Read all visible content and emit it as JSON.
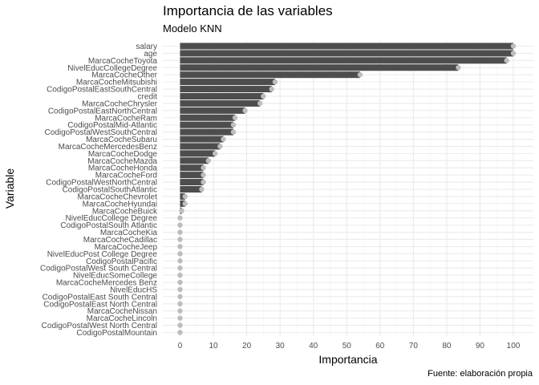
{
  "chart_data": {
    "type": "bar",
    "title": "Importancia de las variables",
    "subtitle": "Modelo KNN",
    "caption": "Fuente: elaboración propia",
    "xlabel": "Importancia",
    "ylabel": "Variable",
    "xlim": [
      0,
      100
    ],
    "xticks": [
      "0",
      "10",
      "20",
      "30",
      "40",
      "50",
      "60",
      "70",
      "80",
      "90",
      "100"
    ],
    "orientation": "horizontal",
    "grid": true,
    "bar_color": "#4d4d4d",
    "point_color": "#bdbdbd",
    "categories": [
      "salary",
      "age",
      "MarcaCocheToyota",
      "NivelEducCollegeDegree",
      "MarcaCocheOther",
      "MarcaCocheMitsubishi",
      "CodigoPostalEastSouthCentral",
      "credit",
      "MarcaCocheChrysler",
      "CodigoPostalEastNorthCentral",
      "MarcaCocheRam",
      "CodigoPostalMid-Atlantic",
      "CodigoPostalWestSouthCentral",
      "MarcaCocheSubaru",
      "MarcaCocheMercedesBenz",
      "MarcaCocheDodge",
      "MarcaCocheMazda",
      "MarcaCocheHonda",
      "MarcaCocheFord",
      "CodigoPostalWestNorthCentral",
      "CodigoPostalSouthAtlantic",
      "MarcaCocheChevrolet",
      "MarcaCocheHyundai",
      "MarcaCocheBuick",
      "NivelEducCollege Degree",
      "CodigoPostalSouth Atlantic",
      "MarcaCocheKia",
      "MarcaCocheCadillac",
      "MarcaCocheJeep",
      "NivelEducPost College Degree",
      "CodigoPostalPacific",
      "CodigoPostalWest South Central",
      "NivelEducSomeCollege",
      "MarcaCocheMercedes Benz",
      "NivelEducHS",
      "CodigoPostalEast South Central",
      "CodigoPostalEast North Central",
      "MarcaCocheNissan",
      "MarcaCocheLincoln",
      "CodigoPostalWest North Central",
      "CodigoPostalMountain"
    ],
    "values": [
      100,
      100,
      98,
      83.5,
      54,
      28.5,
      27.5,
      25,
      24,
      19.5,
      16.5,
      16,
      16,
      13,
      12,
      10.5,
      8.5,
      7,
      7,
      7,
      6.5,
      1.5,
      1.5,
      0.5,
      0,
      0,
      0,
      0,
      0,
      0,
      0,
      0,
      0,
      0,
      0,
      0,
      0,
      0,
      0,
      0,
      0
    ]
  }
}
